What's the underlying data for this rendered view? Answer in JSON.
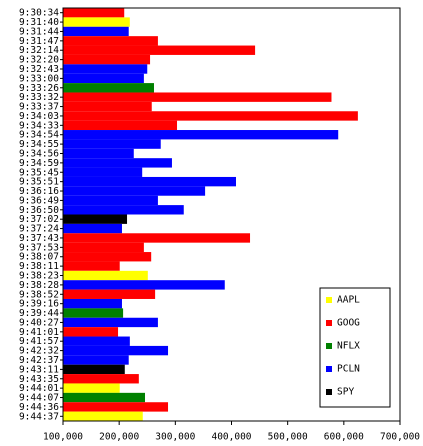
{
  "chart_data": {
    "type": "barh",
    "categories": [
      "9:30:34",
      "9:31:40",
      "9:31:44",
      "9:31:47",
      "9:32:14",
      "9:32:20",
      "9:32:43",
      "9:33:00",
      "9:33:26",
      "9:33:32",
      "9:33:37",
      "9:34:03",
      "9:34:33",
      "9:34:54",
      "9:34:55",
      "9:34:56",
      "9:34:59",
      "9:35:45",
      "9:35:51",
      "9:36:16",
      "9:36:49",
      "9:36:50",
      "9:37:02",
      "9:37:24",
      "9:37:43",
      "9:37:53",
      "9:38:07",
      "9:38:11",
      "9:38:23",
      "9:38:28",
      "9:38:52",
      "9:39:16",
      "9:39:44",
      "9:40:27",
      "9:41:01",
      "9:41:57",
      "9:42:32",
      "9:42:37",
      "9:43:11",
      "9:43:35",
      "9:44:01",
      "9:44:07",
      "9:44:36",
      "9:44:37"
    ],
    "series": [
      {
        "name": "AAPL",
        "color": "#ffff00",
        "values": [
          null,
          219000,
          null,
          null,
          null,
          null,
          null,
          null,
          null,
          null,
          null,
          null,
          null,
          null,
          null,
          null,
          null,
          null,
          null,
          null,
          null,
          null,
          null,
          null,
          null,
          null,
          null,
          null,
          251000,
          null,
          null,
          null,
          null,
          null,
          null,
          null,
          null,
          null,
          null,
          null,
          201000,
          null,
          null,
          242000
        ]
      },
      {
        "name": "GOOG",
        "color": "#ff0000",
        "values": [
          209000,
          null,
          null,
          269000,
          442000,
          255000,
          null,
          null,
          null,
          578000,
          258000,
          625000,
          303000,
          null,
          null,
          null,
          null,
          null,
          null,
          null,
          null,
          null,
          null,
          null,
          433000,
          244000,
          257000,
          201000,
          null,
          null,
          264000,
          null,
          null,
          null,
          198000,
          null,
          null,
          null,
          null,
          235000,
          null,
          null,
          287000,
          null
        ]
      },
      {
        "name": "NFLX",
        "color": "#008000",
        "values": [
          null,
          null,
          null,
          null,
          null,
          null,
          null,
          null,
          262000,
          null,
          null,
          null,
          null,
          null,
          null,
          null,
          null,
          null,
          null,
          null,
          null,
          null,
          null,
          null,
          null,
          null,
          null,
          null,
          null,
          null,
          null,
          null,
          207000,
          null,
          null,
          null,
          null,
          null,
          null,
          null,
          null,
          246000,
          null,
          null
        ]
      },
      {
        "name": "PCLN",
        "color": "#0000ff",
        "values": [
          null,
          null,
          217000,
          null,
          null,
          null,
          250000,
          244000,
          null,
          null,
          null,
          null,
          null,
          590000,
          274000,
          226000,
          294000,
          241000,
          408000,
          353000,
          269000,
          315000,
          null,
          205000,
          null,
          null,
          null,
          null,
          null,
          388000,
          null,
          205000,
          null,
          269000,
          null,
          219000,
          287000,
          217000,
          null,
          null,
          null,
          null,
          null,
          null
        ]
      },
      {
        "name": "SPY",
        "color": "#000000",
        "values": [
          null,
          null,
          null,
          null,
          null,
          null,
          null,
          null,
          null,
          null,
          null,
          null,
          null,
          null,
          null,
          null,
          null,
          null,
          null,
          null,
          null,
          null,
          214000,
          null,
          null,
          null,
          null,
          null,
          null,
          null,
          null,
          null,
          null,
          null,
          null,
          null,
          null,
          null,
          210000,
          null,
          null,
          null,
          null,
          null
        ]
      }
    ],
    "xlim": [
      100000,
      700000
    ],
    "xticks": [
      {
        "value": 100000,
        "label": "100,000"
      },
      {
        "value": 200000,
        "label": "200,000"
      },
      {
        "value": 300000,
        "label": "300,000"
      },
      {
        "value": 400000,
        "label": "400,000"
      },
      {
        "value": 500000,
        "label": "500,000"
      },
      {
        "value": 600000,
        "label": "600,000"
      },
      {
        "value": 700000,
        "label": "700,000"
      }
    ],
    "grid": false,
    "legend": "lower right"
  }
}
